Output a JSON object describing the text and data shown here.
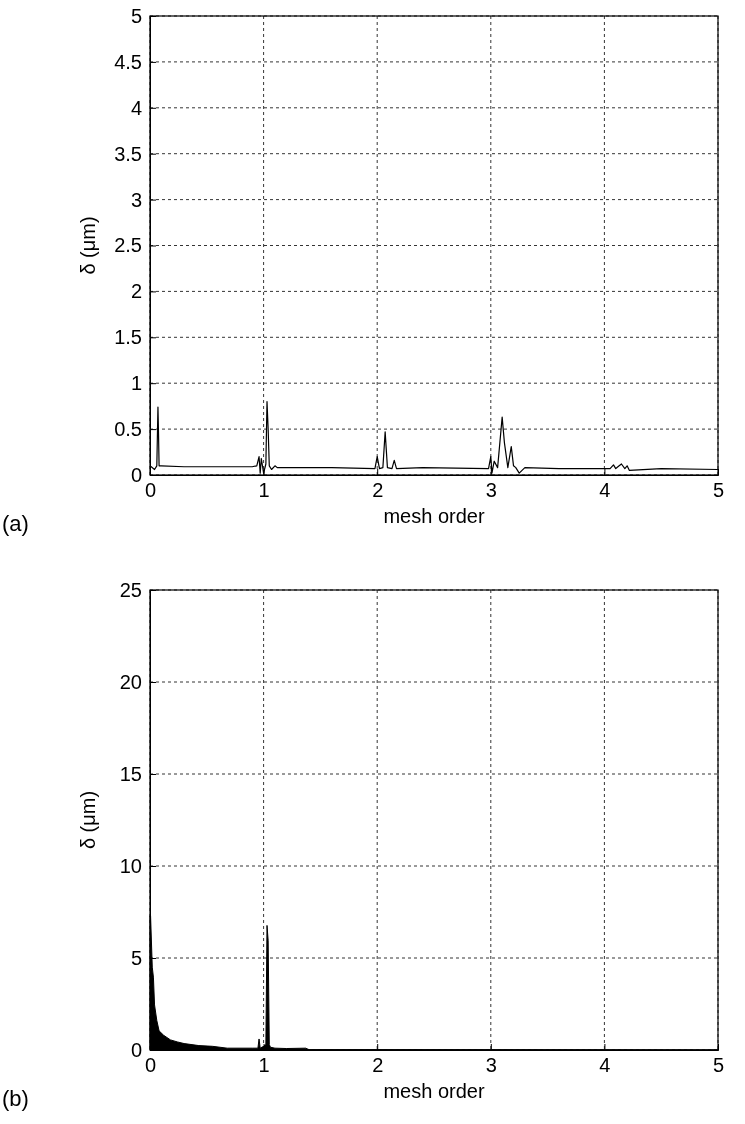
{
  "chart_data": [
    {
      "type": "line",
      "xlabel": "mesh order",
      "ylabel": "δ (μm)",
      "annotations": [
        "(a)"
      ],
      "xlim": [
        0,
        5
      ],
      "ylim": [
        0,
        5
      ],
      "xticks": [
        0,
        1,
        2,
        3,
        4,
        5
      ],
      "yticks": [
        0,
        0.5,
        1,
        1.5,
        2,
        2.5,
        3,
        3.5,
        4,
        4.5,
        5
      ],
      "grid": true,
      "series": [
        {
          "color": "#000000",
          "x": [
            0,
            0.04,
            0.06,
            0.07,
            0.075,
            0.08,
            0.1,
            0.3,
            0.6,
            0.9,
            0.94,
            0.96,
            0.97,
            0.98,
            1.0,
            1.02,
            1.03,
            1.04,
            1.05,
            1.07,
            1.1,
            1.12,
            1.2,
            1.6,
            1.98,
            2.0,
            2.02,
            2.05,
            2.07,
            2.09,
            2.13,
            2.15,
            2.17,
            2.4,
            2.98,
            3.0,
            3.01,
            3.03,
            3.06,
            3.1,
            3.12,
            3.15,
            3.18,
            3.2,
            3.22,
            3.25,
            3.3,
            3.6,
            4.05,
            4.08,
            4.1,
            4.13,
            4.15,
            4.18,
            4.2,
            4.22,
            4.5,
            5
          ],
          "values": [
            0.1,
            0.06,
            0.1,
            0.74,
            0.45,
            0.1,
            0.1,
            0.09,
            0.09,
            0.09,
            0.1,
            0.2,
            0.02,
            0.18,
            0.02,
            0.12,
            0.8,
            0.5,
            0.1,
            0.06,
            0.1,
            0.08,
            0.08,
            0.08,
            0.07,
            0.2,
            0.07,
            0.08,
            0.47,
            0.08,
            0.07,
            0.16,
            0.07,
            0.08,
            0.07,
            0.2,
            0.02,
            0.15,
            0.08,
            0.63,
            0.35,
            0.08,
            0.31,
            0.1,
            0.08,
            0.02,
            0.08,
            0.07,
            0.07,
            0.11,
            0.07,
            0.1,
            0.12,
            0.07,
            0.1,
            0.05,
            0.07,
            0.06
          ]
        }
      ]
    },
    {
      "type": "area",
      "xlabel": "mesh order",
      "ylabel": "δ (μm)",
      "annotations": [
        "(b)"
      ],
      "xlim": [
        0,
        5
      ],
      "ylim": [
        0,
        25
      ],
      "xticks": [
        0,
        1,
        2,
        3,
        4,
        5
      ],
      "yticks": [
        0,
        5,
        10,
        15,
        20,
        25
      ],
      "grid": true,
      "series": [
        {
          "color": "#000000",
          "x": [
            0,
            0.005,
            0.02,
            0.03,
            0.04,
            0.06,
            0.08,
            0.12,
            0.18,
            0.24,
            0.3,
            0.43,
            0.55,
            0.68,
            0.9,
            0.95,
            0.96,
            0.97,
            1.0,
            1.02,
            1.03,
            1.04,
            1.05,
            1.06,
            1.1,
            1.2,
            1.37,
            1.4,
            2.0,
            5
          ],
          "values": [
            7.3,
            7.3,
            4.5,
            3.96,
            2.45,
            1.6,
            1.04,
            0.8,
            0.55,
            0.44,
            0.35,
            0.24,
            0.2,
            0.1,
            0.1,
            0.1,
            0.6,
            0.1,
            0.2,
            0.3,
            6.77,
            5.96,
            0.3,
            0.15,
            0.1,
            0.08,
            0.1,
            0.02,
            0.02,
            0
          ]
        }
      ]
    }
  ]
}
